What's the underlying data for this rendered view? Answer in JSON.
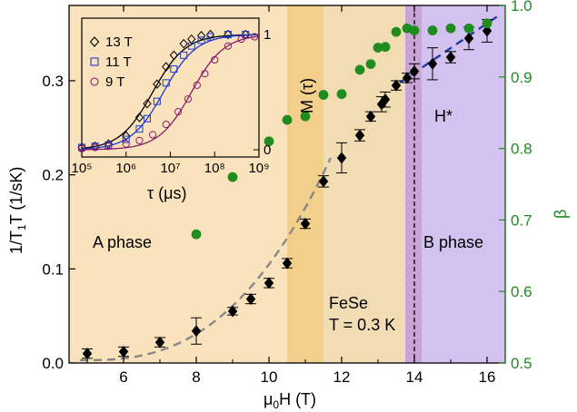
{
  "chart_data": [
    {
      "type": "scatter",
      "xlabel": "μ0H (T)",
      "ylabel_left": "1/T1T (1/sK)",
      "ylabel_right": "β",
      "xlim": [
        4.5,
        16.5
      ],
      "ylim_left": [
        0.0,
        0.38
      ],
      "ylim_right": [
        0.5,
        1.0
      ],
      "x_ticks": [
        "6",
        "8",
        "10",
        "12",
        "14",
        "16"
      ],
      "y_ticks_left": [
        "0.0",
        "0.1",
        "0.2",
        "0.3"
      ],
      "y_ticks_right": [
        "0.5",
        "0.6",
        "0.7",
        "0.8",
        "0.9",
        "1.0"
      ],
      "series": [
        {
          "axis": "left",
          "color": "#000000",
          "marker": "diamond",
          "x": [
            5,
            6,
            7,
            8,
            9,
            9.5,
            10,
            10.5,
            11,
            11.5,
            12,
            12.5,
            12.8,
            13.1,
            13.2,
            13.5,
            13.8,
            14,
            14.5,
            15,
            15.5,
            16
          ],
          "y": [
            0.01,
            0.012,
            0.022,
            0.034,
            0.055,
            0.068,
            0.085,
            0.106,
            0.148,
            0.193,
            0.218,
            0.242,
            0.262,
            0.275,
            0.28,
            0.295,
            0.303,
            0.31,
            0.318,
            0.325,
            0.345,
            0.353
          ],
          "yerr": [
            0.005,
            0.005,
            0.005,
            0.014,
            0.004,
            0.005,
            0.005,
            0.005,
            0.005,
            0.006,
            0.016,
            0.006,
            0.005,
            0.008,
            0.008,
            0.005,
            0.005,
            0.008,
            0.017,
            0.006,
            0.012,
            0.012
          ]
        },
        {
          "axis": "right",
          "color": "#1e8c1e",
          "marker": "circle",
          "x": [
            8,
            9,
            9.5,
            10,
            10.5,
            11,
            11.5,
            12,
            12.5,
            12.8,
            13,
            13.2,
            13.5,
            13.8,
            14,
            14.5,
            15,
            15.5,
            16
          ],
          "y": [
            0.68,
            0.76,
            0.8,
            0.81,
            0.84,
            0.845,
            0.875,
            0.876,
            0.91,
            0.918,
            0.941,
            0.942,
            0.963,
            0.968,
            0.965,
            0.965,
            0.968,
            0.968,
            0.975
          ]
        }
      ],
      "fits": [
        {
          "name": "gray dashed",
          "color": "#888888",
          "x_from": 4.8,
          "x_to": 11.7
        },
        {
          "name": "blue dashed",
          "color": "#1f3aa6",
          "x_from": 13.6,
          "x_to": 16.3
        }
      ],
      "regions": [
        {
          "name": "A",
          "x_from": 4.5,
          "x_to": 10.5,
          "color": "#fae3bc"
        },
        {
          "name": "crossover-dark",
          "x_from": 10.5,
          "x_to": 11.5,
          "color": "#f3cf8c"
        },
        {
          "name": "crossover-light",
          "x_from": 11.5,
          "x_to": 13.75,
          "color": "#f2dcb4"
        },
        {
          "name": "edge",
          "x_from": 13.75,
          "x_to": 14.2,
          "color": "#c9a4d6"
        },
        {
          "name": "B",
          "x_from": 14.2,
          "x_to": 16.5,
          "color": "#d3c1f0"
        }
      ],
      "vline_x": 14.0,
      "annotations": {
        "a_phase": "A phase",
        "b_phase": "B phase",
        "material": "FeSe",
        "temperature": "T = 0.3 K",
        "hstar": "H*"
      }
    },
    {
      "type": "line",
      "xlabel": "τ (μs)",
      "ylabel": "M (τ)",
      "x_scale": "log",
      "xlim": [
        100000,
        1000000000
      ],
      "ylim": [
        0,
        1
      ],
      "x_ticks": [
        "10⁵",
        "10⁶",
        "10⁷",
        "10⁸",
        "10⁹"
      ],
      "y_ticks": [
        "0",
        "1"
      ],
      "series": [
        {
          "name": "13 T",
          "color": "#000000",
          "marker": "diamond",
          "tau_half": 4000000,
          "x": [
            100000,
            200000,
            400000,
            1000000,
            2000000,
            3000000,
            5000000,
            8000000,
            12000000,
            20000000,
            30000000,
            50000000,
            80000000,
            200000000,
            500000000
          ],
          "y": [
            0.02,
            0.03,
            0.05,
            0.12,
            0.28,
            0.4,
            0.57,
            0.72,
            0.82,
            0.92,
            0.96,
            0.99,
            1.0,
            1.0,
            1.0
          ]
        },
        {
          "name": "11 T",
          "color": "#1f3ad0",
          "marker": "square",
          "tau_half": 7000000,
          "x": [
            100000,
            200000,
            400000,
            1000000,
            2000000,
            3000000,
            5000000,
            8000000,
            12000000,
            20000000,
            30000000,
            50000000,
            80000000,
            200000000,
            500000000
          ],
          "y": [
            0.02,
            0.03,
            0.04,
            0.09,
            0.18,
            0.27,
            0.42,
            0.58,
            0.7,
            0.82,
            0.9,
            0.95,
            0.98,
            1.0,
            1.0
          ]
        },
        {
          "name": "9 T",
          "color": "#8c1a6a",
          "marker": "circle",
          "tau_half": 30000000,
          "x": [
            100000,
            200000,
            400000,
            1000000,
            2000000,
            4000000,
            8000000,
            15000000,
            25000000,
            40000000,
            60000000,
            100000000,
            200000000,
            400000000,
            800000000
          ],
          "y": [
            0.01,
            0.02,
            0.03,
            0.05,
            0.08,
            0.13,
            0.22,
            0.33,
            0.44,
            0.56,
            0.66,
            0.78,
            0.9,
            0.96,
            0.98
          ]
        }
      ]
    }
  ]
}
